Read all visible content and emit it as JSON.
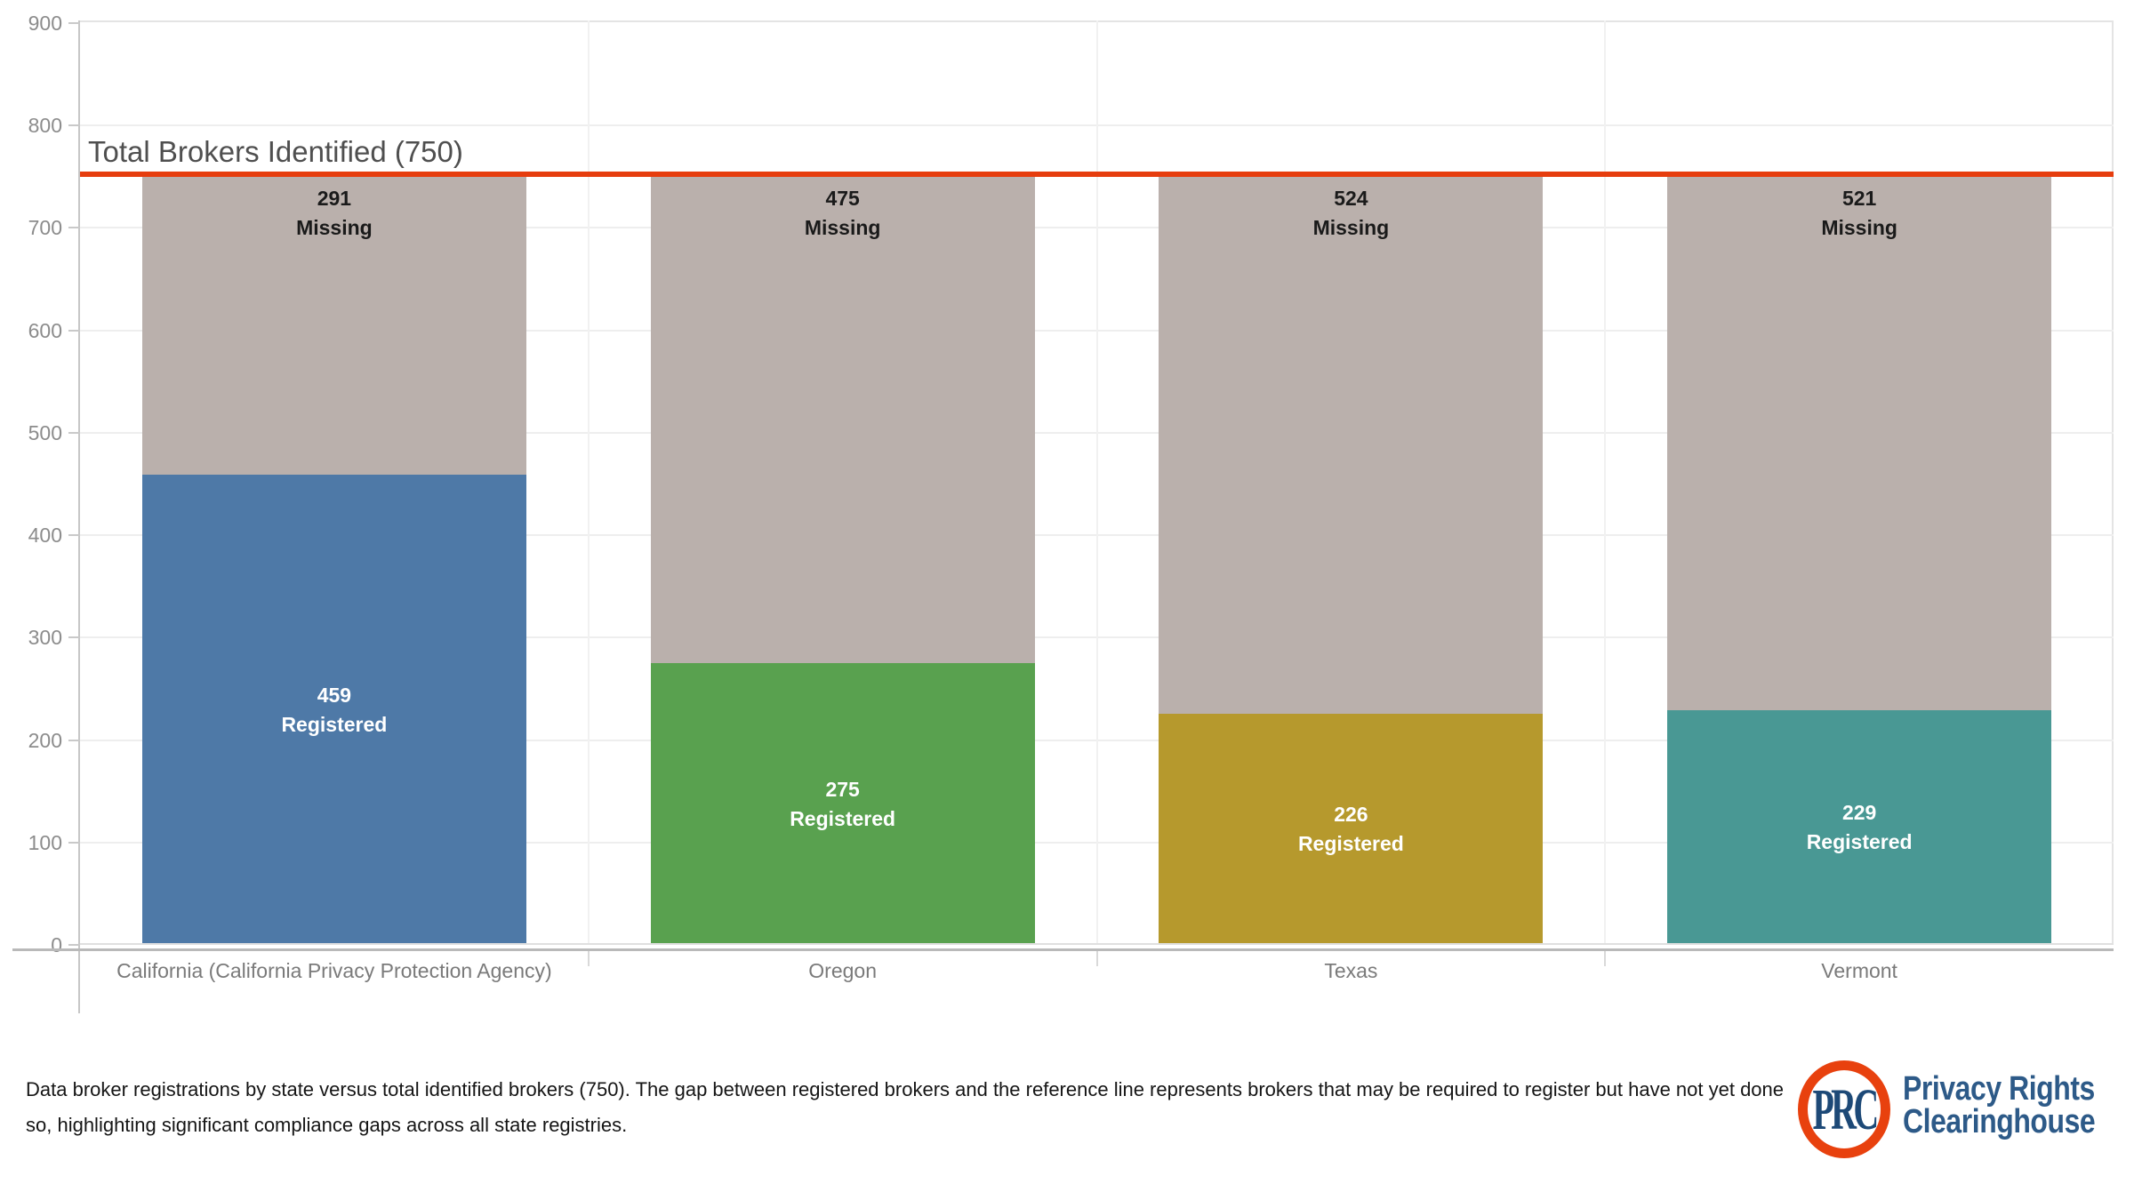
{
  "chart_data": {
    "type": "bar",
    "subtype": "stacked",
    "title": "",
    "categories": [
      "California (California Privacy Protection Agency)",
      "Oregon",
      "Texas",
      "Vermont"
    ],
    "series": [
      {
        "name": "Registered",
        "values": [
          459,
          275,
          226,
          229
        ],
        "colors": [
          "#4e79a7",
          "#59a14f",
          "#b6992d",
          "#499894"
        ],
        "label_text_color": "#ffffff"
      },
      {
        "name": "Missing",
        "values": [
          291,
          475,
          524,
          521
        ],
        "colors": [
          "#bab0ac",
          "#bab0ac",
          "#bab0ac",
          "#bab0ac"
        ],
        "label_text_color": "#1a1a1a"
      }
    ],
    "reference_line": {
      "value": 750,
      "label": "Total Brokers Identified (750)",
      "color": "#e63d0e"
    },
    "y_axis": {
      "ylim": [
        0,
        900
      ],
      "tick_interval": 100,
      "tick_color": "#8c8c8c"
    },
    "grid": true,
    "legend_position": "none"
  },
  "caption": {
    "text": "Data broker registrations by state versus total identified brokers (750). The gap between registered brokers and the reference line represents brokers that may be required to register but have not yet done so, highlighting significant compliance gaps across all state registries."
  },
  "logo": {
    "monogram": "PRC",
    "line1": "Privacy Rights",
    "line2": "Clearinghouse",
    "ring_color": "#e8410e",
    "text_color": "#2d5a88",
    "monogram_color": "#1d4977"
  }
}
